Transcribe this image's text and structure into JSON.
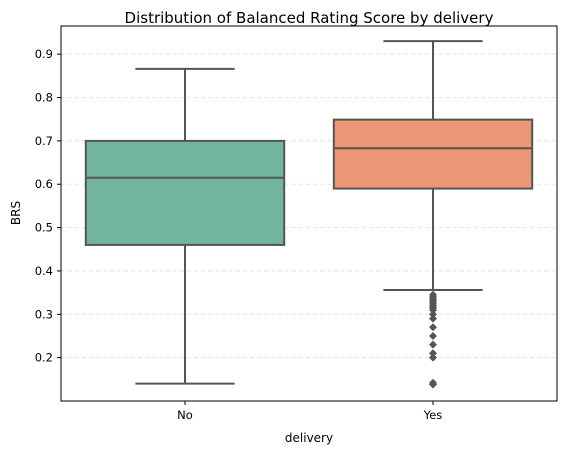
{
  "chart_data": {
    "type": "box",
    "title": "Distribution of Balanced Rating Score by delivery",
    "xlabel": "delivery",
    "ylabel": "BRS",
    "ylim": [
      0.1,
      0.965
    ],
    "yticks": [
      0.2,
      0.3,
      0.4,
      0.5,
      0.6,
      0.7,
      0.8,
      0.9
    ],
    "ytick_labels": [
      "0.2",
      "0.3",
      "0.4",
      "0.5",
      "0.6",
      "0.7",
      "0.8",
      "0.9"
    ],
    "grid": "y-dashed",
    "categories": [
      "No",
      "Yes"
    ],
    "boxes": [
      {
        "category": "No",
        "whisker_low": 0.14,
        "q1": 0.46,
        "median": 0.615,
        "q3": 0.7,
        "whisker_high": 0.866,
        "outliers": [],
        "color": "#72b5a0"
      },
      {
        "category": "Yes",
        "whisker_low": 0.356,
        "q1": 0.59,
        "median": 0.683,
        "q3": 0.749,
        "whisker_high": 0.93,
        "outliers": [
          0.345,
          0.34,
          0.335,
          0.33,
          0.325,
          0.32,
          0.315,
          0.31,
          0.3,
          0.29,
          0.27,
          0.25,
          0.23,
          0.21,
          0.2,
          0.142,
          0.138
        ],
        "color": "#eb9775"
      }
    ]
  }
}
